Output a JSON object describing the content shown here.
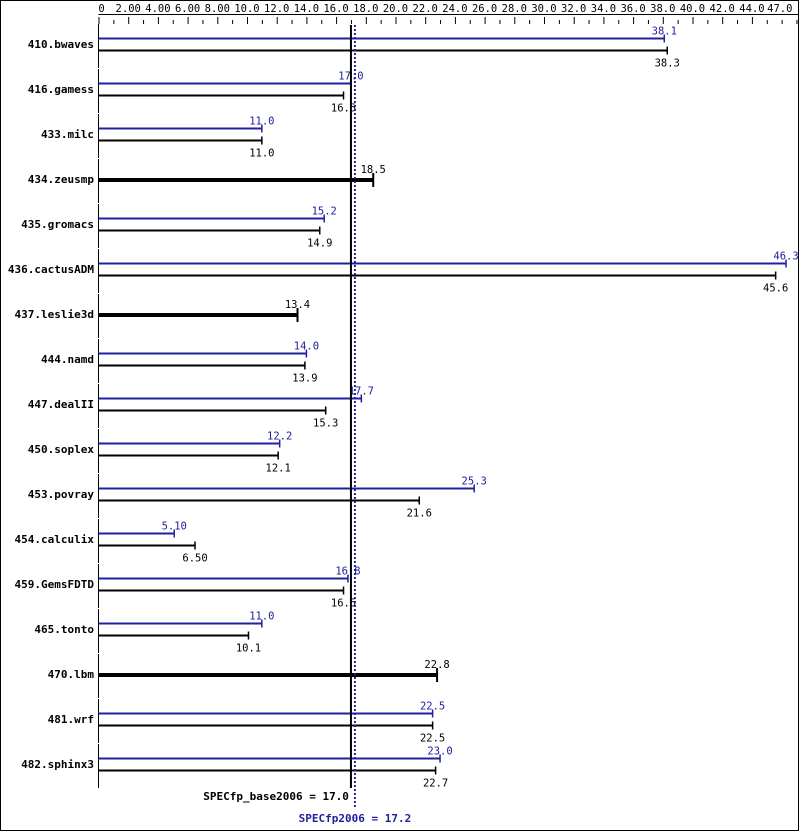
{
  "chart_data": {
    "type": "bar",
    "orientation": "horizontal",
    "xlim": [
      0,
      47.0
    ],
    "x_tick_labels": [
      "0",
      "2.00",
      "4.00",
      "6.00",
      "8.00",
      "10.0",
      "12.0",
      "14.0",
      "16.0",
      "18.0",
      "20.0",
      "22.0",
      "24.0",
      "26.0",
      "28.0",
      "30.0",
      "32.0",
      "34.0",
      "36.0",
      "38.0",
      "40.0",
      "42.0",
      "44.0",
      "47.0"
    ],
    "x_tick_values": [
      0,
      2,
      4,
      6,
      8,
      10,
      12,
      14,
      16,
      18,
      20,
      22,
      24,
      26,
      28,
      30,
      32,
      34,
      36,
      38,
      40,
      42,
      44,
      47
    ],
    "categories": [
      "410.bwaves",
      "416.gamess",
      "433.milc",
      "434.zeusmp",
      "435.gromacs",
      "436.cactusADM",
      "437.leslie3d",
      "444.namd",
      "447.dealII",
      "450.soplex",
      "453.povray",
      "454.calculix",
      "459.GemsFDTD",
      "465.tonto",
      "470.lbm",
      "481.wrf",
      "482.sphinx3"
    ],
    "series": [
      {
        "key": "peak",
        "color": "#2020a0",
        "values": [
          38.1,
          17.0,
          11.0,
          null,
          15.2,
          46.3,
          null,
          14.0,
          17.7,
          12.2,
          25.3,
          5.1,
          16.8,
          11.0,
          null,
          22.5,
          23.0
        ],
        "labels": [
          "38.1",
          "17.0",
          "11.0",
          "",
          "15.2",
          "46.3",
          "",
          "14.0",
          "17.7",
          "12.2",
          "25.3",
          "5.10",
          "16.8",
          "11.0",
          "",
          "22.5",
          "23.0"
        ]
      },
      {
        "key": "base",
        "color": "#000000",
        "values": [
          38.3,
          16.5,
          11.0,
          18.5,
          14.9,
          45.6,
          13.4,
          13.9,
          15.3,
          12.1,
          21.6,
          6.5,
          16.5,
          10.1,
          22.8,
          22.5,
          22.7
        ],
        "labels": [
          "38.3",
          "16.5",
          "11.0",
          "18.5",
          "14.9",
          "45.6",
          "13.4",
          "13.9",
          "15.3",
          "12.1",
          "21.6",
          "6.50",
          "16.5",
          "10.1",
          "22.8",
          "22.5",
          "22.7"
        ]
      }
    ],
    "reference_lines": [
      {
        "key": "base",
        "value": 17.0,
        "label": "SPECfp_base2006 = 17.0",
        "color": "#000000",
        "style": "solid"
      },
      {
        "key": "peak",
        "value": 17.2,
        "label": "SPECfp2006 = 17.2",
        "color": "#2020a0",
        "style": "dotted"
      }
    ]
  }
}
